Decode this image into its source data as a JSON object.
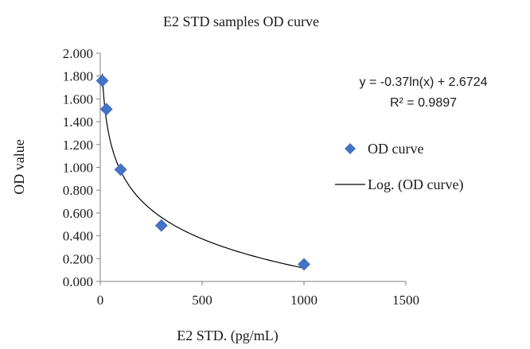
{
  "chart_data": {
    "type": "scatter",
    "title": "E2 STD samples OD curve",
    "xlabel": "E2 STD. (pg/mL)",
    "ylabel": "OD value",
    "xlim": [
      0,
      1500
    ],
    "ylim": [
      0,
      2.0
    ],
    "x_ticks": [
      "0",
      "500",
      "1000",
      "1500"
    ],
    "y_ticks": [
      "0.000",
      "0.200",
      "0.400",
      "0.600",
      "0.800",
      "1.000",
      "1.200",
      "1.400",
      "1.600",
      "1.800",
      "2.000"
    ],
    "grid": false,
    "legend_position": "right",
    "series": [
      {
        "name": "OD curve",
        "marker": "diamond",
        "color": "#4472C4",
        "points": [
          {
            "x": 10,
            "y": 1.76
          },
          {
            "x": 30,
            "y": 1.51
          },
          {
            "x": 100,
            "y": 0.98
          },
          {
            "x": 300,
            "y": 0.49
          },
          {
            "x": 1000,
            "y": 0.15
          }
        ]
      },
      {
        "name": "Log. (OD curve)",
        "type": "trendline",
        "color": "#000000",
        "equation": {
          "a": -0.37,
          "b": 2.6724
        },
        "x_range": [
          10,
          1000
        ]
      }
    ],
    "annotation": {
      "equation_text": "y = -0.37ln(x) + 2.6724",
      "r2_text": "R² = 0.9897"
    }
  }
}
